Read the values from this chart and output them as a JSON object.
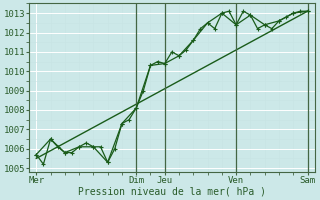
{
  "background_color": "#cce8e8",
  "grid_color_major": "#aacccc",
  "grid_color_minor": "#bbdddd",
  "line_color": "#1a5c1a",
  "ylabel": "Pression niveau de la mer( hPa )",
  "ylim": [
    1004.8,
    1013.5
  ],
  "yticks": [
    1005,
    1006,
    1007,
    1008,
    1009,
    1010,
    1011,
    1012,
    1013
  ],
  "day_labels": [
    "Mer",
    "Dim",
    "Jeu",
    "Ven",
    "Sam"
  ],
  "day_positions": [
    0,
    7,
    9,
    14,
    19
  ],
  "xlim": [
    -0.5,
    19.5
  ],
  "line1_x": [
    0,
    0.5,
    1,
    1.5,
    2,
    2.5,
    3,
    3.5,
    4,
    4.5,
    5,
    5.5,
    6,
    6.5,
    7,
    7.5,
    8,
    8.5,
    9,
    9.5,
    10,
    10.5,
    11,
    11.5,
    12,
    12.5,
    13,
    13.5,
    14,
    14.5,
    15,
    15.5,
    16,
    16.5,
    17,
    17.5,
    18,
    18.5,
    19
  ],
  "line1_y": [
    1005.7,
    1005.2,
    1006.5,
    1006.1,
    1005.8,
    1005.8,
    1006.1,
    1006.3,
    1006.1,
    1006.1,
    1005.3,
    1006.0,
    1007.3,
    1007.5,
    1008.1,
    1009.0,
    1010.3,
    1010.5,
    1010.4,
    1011.0,
    1010.8,
    1011.1,
    1011.6,
    1012.2,
    1012.5,
    1012.2,
    1013.0,
    1013.1,
    1012.4,
    1013.1,
    1012.9,
    1012.2,
    1012.4,
    1012.2,
    1012.6,
    1012.8,
    1013.0,
    1013.1,
    1013.1
  ],
  "line2_x": [
    0,
    1,
    2,
    3,
    4,
    5,
    6,
    7,
    8,
    9,
    10,
    11,
    12,
    13,
    14,
    15,
    16,
    17,
    18,
    19
  ],
  "line2_y": [
    1005.7,
    1006.5,
    1005.8,
    1006.1,
    1006.1,
    1005.3,
    1007.3,
    1008.1,
    1010.3,
    1010.4,
    1010.8,
    1011.6,
    1012.5,
    1013.0,
    1012.4,
    1012.9,
    1012.4,
    1012.6,
    1013.0,
    1013.1
  ],
  "trend_x": [
    0,
    19
  ],
  "trend_y": [
    1005.5,
    1013.1
  ],
  "vline_positions": [
    7,
    9,
    14,
    19
  ]
}
